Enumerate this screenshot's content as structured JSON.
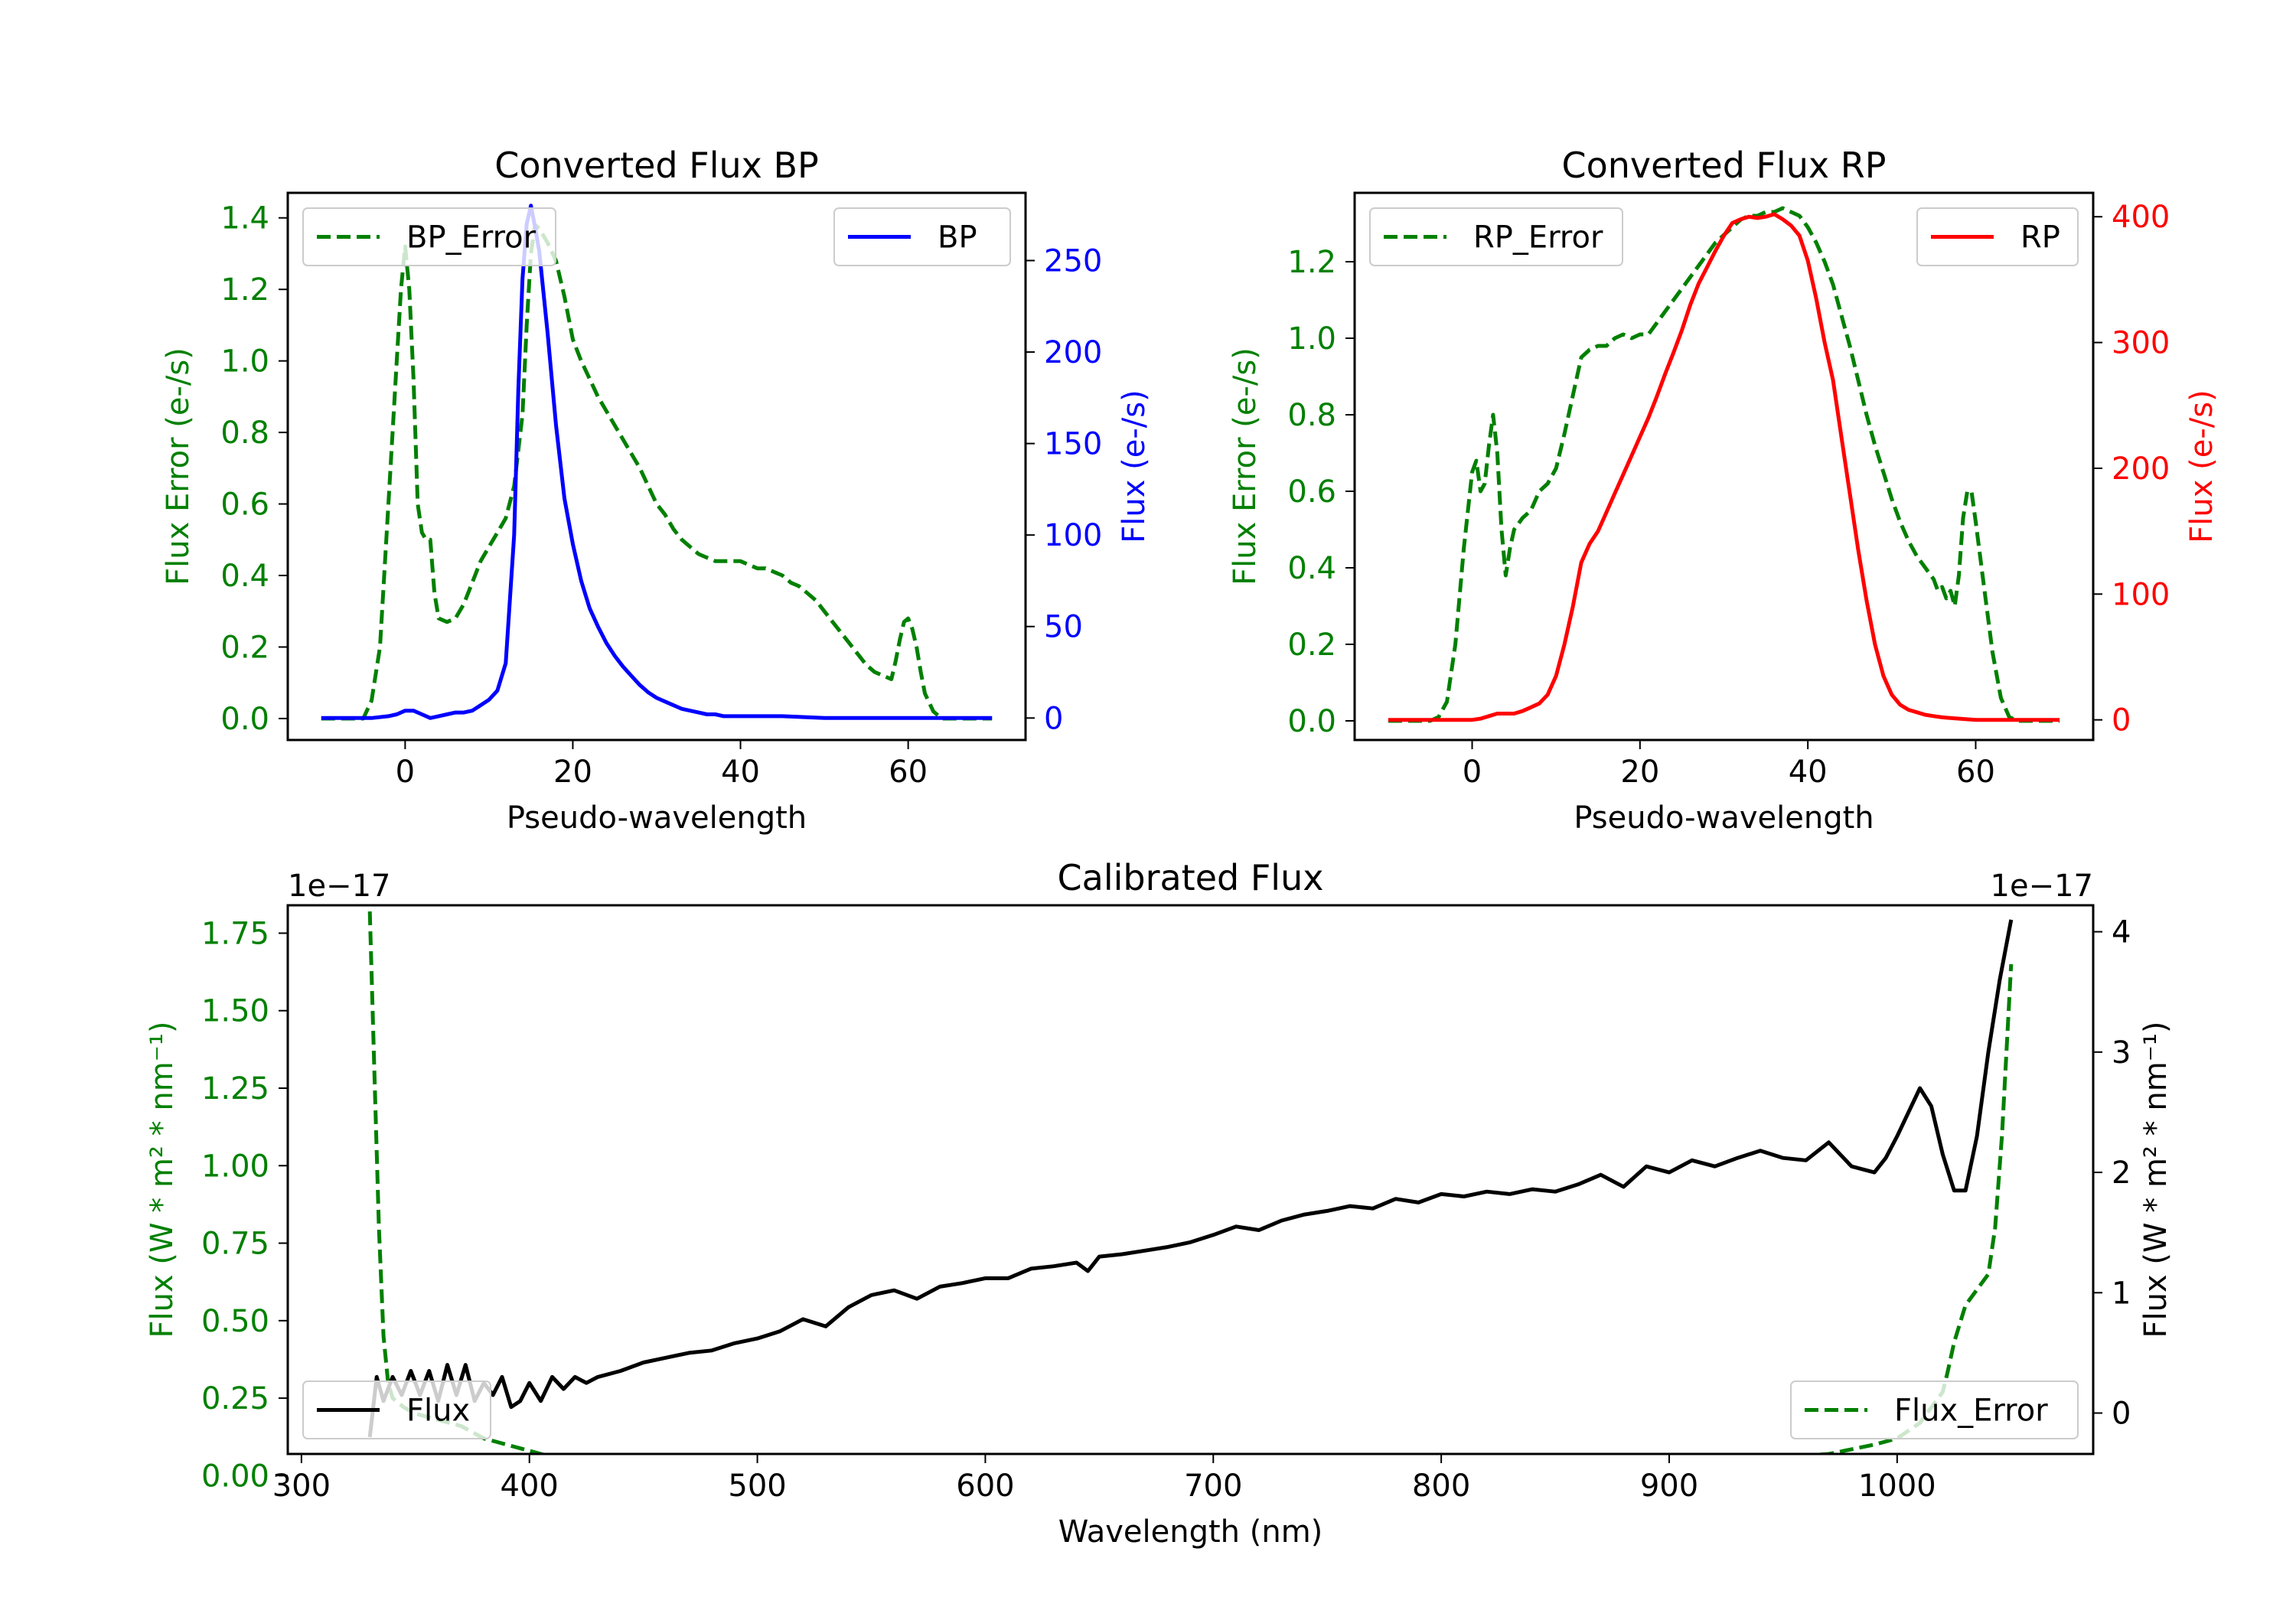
{
  "chart_data": [
    {
      "id": "bp",
      "type": "line",
      "title": "Converted Flux BP",
      "xlabel": "Pseudo-wavelength",
      "xlim": [
        -14,
        74
      ],
      "xticks": [
        0,
        20,
        40,
        60
      ],
      "left_axis": {
        "label": "Flux Error (e-/s)",
        "color": "#008000",
        "ylim": [
          -0.06,
          1.47
        ],
        "ticks": [
          0.0,
          0.2,
          0.4,
          0.6,
          0.8,
          1.0,
          1.2,
          1.4
        ],
        "tick_labels": [
          "0.0",
          "0.2",
          "0.4",
          "0.6",
          "0.8",
          "1.0",
          "1.2",
          "1.4"
        ]
      },
      "right_axis": {
        "label": "Flux (e-/s)",
        "color": "#0000ff",
        "ylim": [
          -12,
          287
        ],
        "ticks": [
          0,
          50,
          100,
          150,
          200,
          250
        ],
        "tick_labels": [
          "0",
          "50",
          "100",
          "150",
          "200",
          "250"
        ]
      },
      "series": [
        {
          "name": "BP_Error",
          "axis": "left",
          "color": "#008000",
          "style": "dashed",
          "x": [
            -10,
            -5,
            -4,
            -3,
            -2,
            -1,
            -0.5,
            0,
            0.5,
            1,
            1.5,
            2,
            2.5,
            3,
            3.5,
            4,
            5,
            6,
            7,
            8,
            9,
            10,
            11,
            12,
            13,
            14,
            14.5,
            15,
            15.5,
            16,
            17,
            18,
            19,
            20,
            21,
            22,
            23,
            24,
            25,
            26,
            27,
            28,
            29,
            30,
            31,
            32,
            33,
            34,
            35,
            36,
            37,
            38,
            39,
            40,
            41,
            42,
            43,
            44,
            45,
            46,
            47,
            48,
            49,
            50,
            51,
            52,
            53,
            54,
            55,
            56,
            57,
            58,
            58.5,
            59,
            59.5,
            60,
            60.5,
            61,
            61.5,
            62,
            63,
            64,
            70
          ],
          "y": [
            0.0,
            0.0,
            0.05,
            0.2,
            0.6,
            1.0,
            1.2,
            1.32,
            1.2,
            0.95,
            0.6,
            0.52,
            0.5,
            0.5,
            0.35,
            0.28,
            0.27,
            0.28,
            0.32,
            0.38,
            0.44,
            0.48,
            0.52,
            0.56,
            0.65,
            0.85,
            1.1,
            1.3,
            1.38,
            1.37,
            1.33,
            1.28,
            1.18,
            1.06,
            1.0,
            0.95,
            0.9,
            0.86,
            0.82,
            0.78,
            0.74,
            0.7,
            0.65,
            0.6,
            0.57,
            0.53,
            0.5,
            0.48,
            0.46,
            0.45,
            0.44,
            0.44,
            0.44,
            0.44,
            0.43,
            0.42,
            0.42,
            0.41,
            0.4,
            0.38,
            0.37,
            0.35,
            0.33,
            0.3,
            0.27,
            0.24,
            0.21,
            0.18,
            0.15,
            0.13,
            0.12,
            0.11,
            0.16,
            0.22,
            0.27,
            0.28,
            0.25,
            0.2,
            0.13,
            0.07,
            0.02,
            0.0,
            0.0
          ]
        },
        {
          "name": "BP",
          "axis": "right",
          "color": "#0000ff",
          "style": "solid",
          "x": [
            -10,
            -4,
            -2,
            -1,
            0,
            1,
            2,
            3,
            4,
            5,
            6,
            7,
            8,
            9,
            10,
            11,
            12,
            13,
            13.5,
            14,
            14.5,
            15,
            15.5,
            16,
            17,
            18,
            19,
            20,
            21,
            22,
            23,
            24,
            25,
            26,
            27,
            28,
            29,
            30,
            31,
            32,
            33,
            34,
            35,
            36,
            37,
            38,
            39,
            40,
            42,
            45,
            50,
            55,
            60,
            65,
            70
          ],
          "y": [
            0,
            0,
            1,
            2,
            4,
            4,
            2,
            0,
            1,
            2,
            3,
            3,
            4,
            7,
            10,
            15,
            30,
            100,
            180,
            240,
            270,
            280,
            268,
            255,
            210,
            160,
            120,
            95,
            75,
            60,
            50,
            41,
            34,
            28,
            23,
            18,
            14,
            11,
            9,
            7,
            5,
            4,
            3,
            2,
            2,
            1,
            1,
            1,
            1,
            1,
            0,
            0,
            0,
            0,
            0
          ]
        }
      ],
      "legend": [
        {
          "label": "BP_Error",
          "position": "upper-left"
        },
        {
          "label": "BP",
          "position": "upper-right"
        }
      ]
    },
    {
      "id": "rp",
      "type": "line",
      "title": "Converted Flux RP",
      "xlabel": "Pseudo-wavelength",
      "xlim": [
        -14,
        74
      ],
      "xticks": [
        0,
        20,
        40,
        60
      ],
      "left_axis": {
        "label": "Flux Error (e-/s)",
        "color": "#008000",
        "ylim": [
          -0.05,
          1.38
        ],
        "ticks": [
          0.0,
          0.2,
          0.4,
          0.6,
          0.8,
          1.0,
          1.2
        ],
        "tick_labels": [
          "0.0",
          "0.2",
          "0.4",
          "0.6",
          "0.8",
          "1.0",
          "1.2"
        ]
      },
      "right_axis": {
        "label": "Flux (e-/s)",
        "color": "#ff0000",
        "ylim": [
          -16,
          419
        ],
        "ticks": [
          0,
          100,
          200,
          300,
          400
        ],
        "tick_labels": [
          "0",
          "100",
          "200",
          "300",
          "400"
        ]
      },
      "series": [
        {
          "name": "RP_Error",
          "axis": "left",
          "color": "#008000",
          "style": "dashed",
          "x": [
            -10,
            -5,
            -4,
            -3,
            -2,
            -1,
            0,
            0.5,
            1,
            1.5,
            2,
            2.5,
            3,
            3.5,
            4,
            4.5,
            5,
            6,
            7,
            8,
            9,
            10,
            11,
            12,
            13,
            14,
            15,
            16,
            17,
            18,
            19,
            20,
            21,
            22,
            23,
            24,
            25,
            26,
            27,
            28,
            29,
            30,
            31,
            32,
            33,
            34,
            35,
            36,
            37,
            38,
            39,
            40,
            41,
            42,
            43,
            44,
            45,
            46,
            47,
            48,
            49,
            50,
            51,
            52,
            53,
            54,
            55,
            55.5,
            56,
            56.5,
            57,
            57.5,
            58,
            58.5,
            59,
            59.5,
            60,
            61,
            62,
            63,
            64,
            65,
            70
          ],
          "y": [
            0.0,
            0.0,
            0.01,
            0.05,
            0.2,
            0.45,
            0.65,
            0.68,
            0.6,
            0.62,
            0.72,
            0.8,
            0.7,
            0.5,
            0.38,
            0.45,
            0.5,
            0.53,
            0.55,
            0.6,
            0.62,
            0.66,
            0.75,
            0.85,
            0.95,
            0.97,
            0.98,
            0.98,
            1.0,
            1.01,
            1.0,
            1.01,
            1.01,
            1.04,
            1.07,
            1.1,
            1.13,
            1.16,
            1.19,
            1.22,
            1.25,
            1.27,
            1.29,
            1.31,
            1.32,
            1.32,
            1.33,
            1.33,
            1.34,
            1.33,
            1.32,
            1.29,
            1.25,
            1.2,
            1.14,
            1.06,
            0.98,
            0.89,
            0.8,
            0.72,
            0.65,
            0.58,
            0.52,
            0.47,
            0.43,
            0.4,
            0.37,
            0.34,
            0.35,
            0.32,
            0.34,
            0.3,
            0.38,
            0.53,
            0.6,
            0.6,
            0.52,
            0.35,
            0.18,
            0.06,
            0.01,
            0.0,
            0.0
          ]
        },
        {
          "name": "RP",
          "axis": "right",
          "color": "#ff0000",
          "style": "solid",
          "x": [
            -10,
            -5,
            -2,
            0,
            1,
            2,
            3,
            4,
            5,
            6,
            7,
            8,
            9,
            10,
            11,
            12,
            13,
            14,
            15,
            16,
            17,
            18,
            19,
            20,
            21,
            22,
            23,
            24,
            25,
            26,
            27,
            28,
            29,
            30,
            31,
            32,
            33,
            34,
            35,
            36,
            37,
            38,
            39,
            40,
            41,
            42,
            43,
            44,
            45,
            46,
            47,
            48,
            49,
            50,
            51,
            52,
            53,
            54,
            55,
            56,
            58,
            60,
            62,
            65,
            70
          ],
          "y": [
            0,
            0,
            0,
            0,
            1,
            3,
            5,
            5,
            5,
            7,
            10,
            13,
            20,
            35,
            60,
            90,
            125,
            140,
            150,
            165,
            180,
            195,
            210,
            225,
            240,
            257,
            275,
            292,
            310,
            330,
            347,
            360,
            373,
            385,
            395,
            398,
            400,
            399,
            400,
            402,
            398,
            393,
            385,
            365,
            335,
            300,
            270,
            225,
            180,
            135,
            95,
            60,
            35,
            20,
            12,
            8,
            6,
            4,
            3,
            2,
            1,
            0,
            0,
            0,
            0
          ]
        }
      ],
      "legend": [
        {
          "label": "RP_Error",
          "position": "upper-left"
        },
        {
          "label": "RP",
          "position": "upper-right"
        }
      ]
    },
    {
      "id": "cal",
      "type": "line",
      "title": "Calibrated Flux",
      "xlabel": "Wavelength (nm)",
      "xlim": [
        294,
        1086
      ],
      "xticks": [
        300,
        400,
        500,
        600,
        700,
        800,
        900,
        1000
      ],
      "left_axis": {
        "label": "Flux (W * m² * nm⁻¹)",
        "color": "#008000",
        "exponent": "1e−17",
        "ylim": [
          0.07,
          1.84
        ],
        "ticks": [
          0.0,
          0.25,
          0.5,
          0.75,
          1.0,
          1.25,
          1.5,
          1.75
        ],
        "tick_labels": [
          "0.00",
          "0.25",
          "0.50",
          "0.75",
          "1.00",
          "1.25",
          "1.50",
          "1.75"
        ]
      },
      "right_axis": {
        "label": "Flux (W * m² * nm⁻¹)",
        "color": "#000000",
        "exponent": "1e−17",
        "ylim": [
          -0.34,
          4.22
        ],
        "ticks": [
          0,
          1,
          2,
          3,
          4
        ],
        "tick_labels": [
          "0",
          "1",
          "2",
          "3",
          "4"
        ]
      },
      "series": [
        {
          "name": "Flux_Error",
          "axis": "left",
          "color": "#008000",
          "style": "dashed",
          "x": [
            330,
            332,
            334,
            336,
            338,
            340,
            345,
            350,
            360,
            370,
            380,
            390,
            400,
            410,
            420,
            430,
            450,
            500,
            550,
            600,
            620,
            635,
            640,
            645,
            650,
            700,
            750,
            800,
            850,
            880,
            900,
            920,
            950,
            970,
            990,
            1000,
            1010,
            1015,
            1020,
            1022,
            1025,
            1030,
            1035,
            1040,
            1043,
            1046,
            1050
          ],
          "y": [
            1.82,
            1.3,
            0.8,
            0.45,
            0.3,
            0.25,
            0.22,
            0.2,
            0.18,
            0.16,
            0.12,
            0.1,
            0.08,
            0.06,
            0.045,
            0.045,
            0.04,
            0.03,
            0.025,
            0.02,
            0.015,
            0.015,
            0.02,
            0.04,
            0.04,
            0.04,
            0.035,
            0.035,
            0.035,
            0.035,
            0.04,
            0.045,
            0.06,
            0.07,
            0.1,
            0.12,
            0.17,
            0.22,
            0.27,
            0.33,
            0.43,
            0.55,
            0.6,
            0.65,
            0.8,
            1.1,
            1.65
          ]
        },
        {
          "name": "Flux",
          "axis": "right",
          "color": "#000000",
          "style": "solid",
          "x": [
            330,
            333,
            336,
            340,
            344,
            348,
            352,
            356,
            360,
            364,
            368,
            372,
            376,
            380,
            384,
            388,
            392,
            396,
            400,
            405,
            410,
            415,
            420,
            425,
            430,
            440,
            450,
            460,
            470,
            480,
            490,
            500,
            510,
            520,
            530,
            540,
            550,
            560,
            570,
            580,
            590,
            600,
            610,
            620,
            630,
            640,
            645,
            650,
            660,
            670,
            680,
            690,
            700,
            710,
            720,
            730,
            740,
            750,
            760,
            770,
            780,
            790,
            800,
            810,
            820,
            830,
            840,
            850,
            860,
            870,
            880,
            890,
            900,
            910,
            920,
            930,
            940,
            950,
            960,
            970,
            980,
            990,
            995,
            1000,
            1005,
            1010,
            1015,
            1020,
            1025,
            1030,
            1035,
            1040,
            1045,
            1050
          ],
          "y": [
            -0.2,
            0.3,
            0.1,
            0.3,
            0.15,
            0.35,
            0.15,
            0.35,
            0.1,
            0.4,
            0.15,
            0.4,
            0.1,
            0.25,
            0.15,
            0.3,
            0.05,
            0.1,
            0.25,
            0.1,
            0.3,
            0.2,
            0.3,
            0.25,
            0.3,
            0.35,
            0.42,
            0.46,
            0.5,
            0.52,
            0.58,
            0.62,
            0.68,
            0.78,
            0.72,
            0.88,
            0.98,
            1.02,
            0.95,
            1.05,
            1.08,
            1.12,
            1.12,
            1.2,
            1.22,
            1.25,
            1.18,
            1.3,
            1.32,
            1.35,
            1.38,
            1.42,
            1.48,
            1.55,
            1.52,
            1.6,
            1.65,
            1.68,
            1.72,
            1.7,
            1.78,
            1.75,
            1.82,
            1.8,
            1.84,
            1.82,
            1.86,
            1.84,
            1.9,
            1.98,
            1.88,
            2.05,
            2.0,
            2.1,
            2.05,
            2.12,
            2.18,
            2.12,
            2.1,
            2.25,
            2.05,
            2.0,
            2.12,
            2.3,
            2.5,
            2.7,
            2.55,
            2.15,
            1.85,
            1.85,
            2.3,
            3.0,
            3.6,
            4.1
          ]
        }
      ],
      "legend": [
        {
          "label": "Flux",
          "position": "lower-left"
        },
        {
          "label": "Flux_Error",
          "position": "lower-right"
        }
      ]
    }
  ]
}
